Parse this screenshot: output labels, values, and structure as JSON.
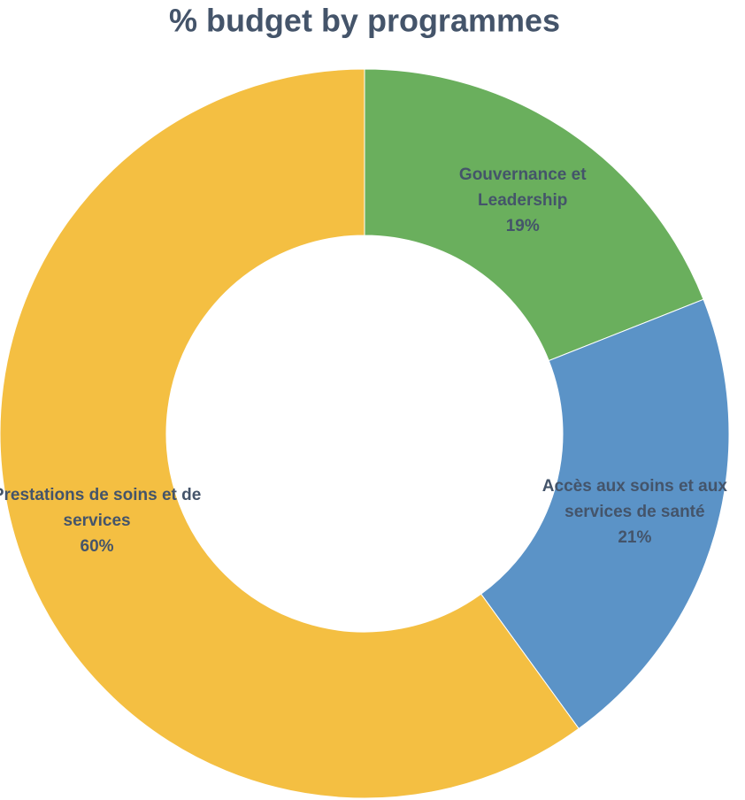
{
  "chart_data": {
    "type": "donut",
    "title": "% budget by programmes",
    "categories": [
      "Gouvernance et Leadership",
      "Accès aux soins et aux services de santé",
      "Prestations de soins et de services"
    ],
    "values": [
      19,
      21,
      60
    ],
    "value_labels": [
      "19%",
      "21%",
      "60%"
    ],
    "colors": [
      "#6aaf5d",
      "#5b93c7",
      "#f4bf42"
    ]
  }
}
